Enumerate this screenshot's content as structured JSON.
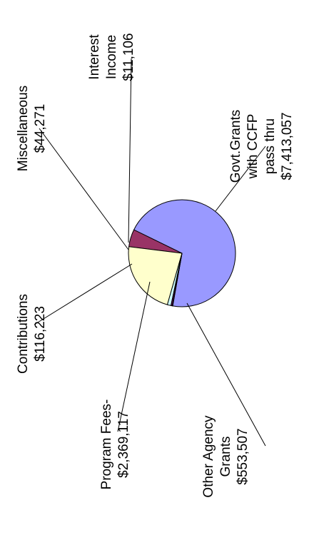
{
  "chart_data": {
    "type": "pie",
    "title": "",
    "rotation": "counter-clockwise 90° (labels read bottom-to-top)",
    "legend": "none",
    "slices": [
      {
        "key": "govt",
        "lines": [
          "Govt.Grants",
          "with CCFP",
          "pass thru",
          "$7,413,057"
        ],
        "value": 7413057,
        "color": "#9999ff"
      },
      {
        "key": "other",
        "lines": [
          "Other Agency",
          "Grants",
          "$553,507"
        ],
        "value": 553507,
        "color": "#993366"
      },
      {
        "key": "program",
        "lines": [
          "Program Fees-",
          "$2,369,117"
        ],
        "value": 2369117,
        "color": "#ffffcc"
      },
      {
        "key": "contrib",
        "lines": [
          "Contributions",
          "$116,223"
        ],
        "value": 116223,
        "color": "#ccffff"
      },
      {
        "key": "misc",
        "lines": [
          "Miscellaneous",
          "$44,271"
        ],
        "value": 44271,
        "color": "#660066"
      },
      {
        "key": "interest",
        "lines": [
          "Interest",
          "Income",
          "$11,106"
        ],
        "value": 11106,
        "color": "#ff8080"
      }
    ]
  }
}
